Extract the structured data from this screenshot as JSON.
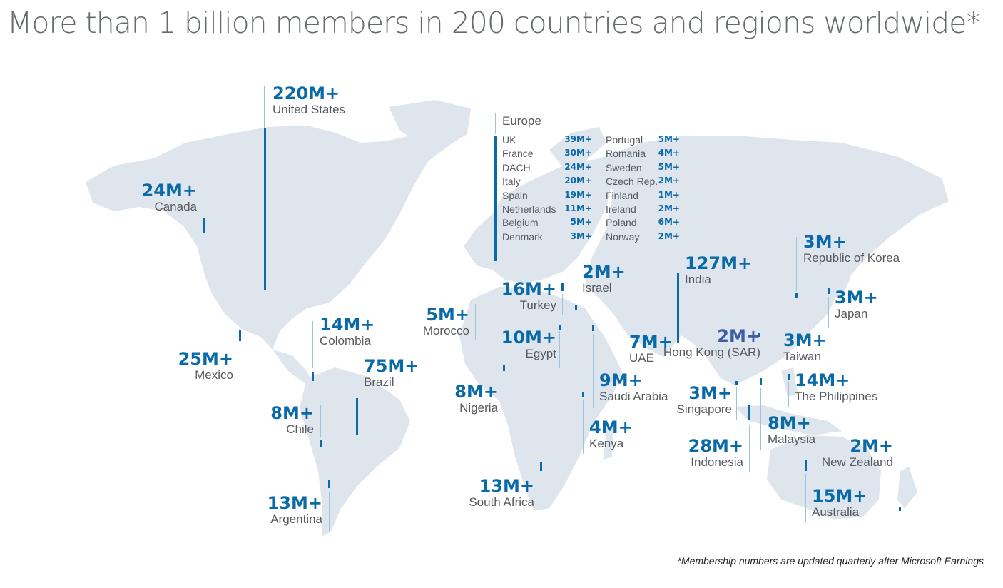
{
  "title": "More than 1 billion members in 200 countries and regions worldwide*",
  "footnote": "*Membership numbers are updated quarterly after Microsoft Earnings",
  "colors": {
    "accent": "#0a6aa8",
    "land": "#dfe5ed",
    "title": "#666b70"
  },
  "callouts": {
    "united_states": {
      "value": "220M+",
      "country": "United States"
    },
    "canada": {
      "value": "24M+",
      "country": "Canada"
    },
    "mexico": {
      "value": "25M+",
      "country": "Mexico"
    },
    "colombia": {
      "value": "14M+",
      "country": "Colombia"
    },
    "brazil": {
      "value": "75M+",
      "country": "Brazil"
    },
    "chile": {
      "value": "8M+",
      "country": "Chile"
    },
    "argentina": {
      "value": "13M+",
      "country": "Argentina"
    },
    "morocco": {
      "value": "5M+",
      "country": "Morocco"
    },
    "turkey": {
      "value": "16M+",
      "country": "Turkey"
    },
    "israel": {
      "value": "2M+",
      "country": "Israel"
    },
    "egypt": {
      "value": "10M+",
      "country": "Egypt"
    },
    "nigeria": {
      "value": "8M+",
      "country": "Nigeria"
    },
    "saudi_arabia": {
      "value": "9M+",
      "country": "Saudi Arabia"
    },
    "uae": {
      "value": "7M+",
      "country": "UAE"
    },
    "kenya": {
      "value": "4M+",
      "country": "Kenya"
    },
    "south_africa": {
      "value": "13M+",
      "country": "South Africa"
    },
    "india": {
      "value": "127M+",
      "country": "India"
    },
    "hong_kong": {
      "value": "2M+",
      "country": "Hong Kong (SAR)"
    },
    "taiwan": {
      "value": "3M+",
      "country": "Taiwan"
    },
    "korea": {
      "value": "3M+",
      "country": "Republic of Korea"
    },
    "japan": {
      "value": "3M+",
      "country": "Japan"
    },
    "philippines": {
      "value": "14M+",
      "country": "The Philippines"
    },
    "singapore": {
      "value": "3M+",
      "country": "Singapore"
    },
    "malaysia": {
      "value": "8M+",
      "country": "Malaysia"
    },
    "indonesia": {
      "value": "28M+",
      "country": "Indonesia"
    },
    "new_zealand": {
      "value": "2M+",
      "country": "New Zealand"
    },
    "australia": {
      "value": "15M+",
      "country": "Australia"
    }
  },
  "europe": {
    "title": "Europe",
    "col1": [
      {
        "country": "UK",
        "value": "39M+"
      },
      {
        "country": "France",
        "value": "30M+"
      },
      {
        "country": "DACH",
        "value": "24M+"
      },
      {
        "country": "Italy",
        "value": "20M+"
      },
      {
        "country": "Spain",
        "value": "19M+"
      },
      {
        "country": "Netherlands",
        "value": "11M+"
      },
      {
        "country": "Belgium",
        "value": "5M+"
      },
      {
        "country": "Denmark",
        "value": "3M+"
      }
    ],
    "col2": [
      {
        "country": "Portugal",
        "value": "5M+"
      },
      {
        "country": "Romania",
        "value": "4M+"
      },
      {
        "country": "Sweden",
        "value": "5M+"
      },
      {
        "country": "Czech Rep.",
        "value": "2M+"
      },
      {
        "country": "Finland",
        "value": "1M+"
      },
      {
        "country": "Ireland",
        "value": "2M+"
      },
      {
        "country": "Poland",
        "value": "6M+"
      },
      {
        "country": "Norway",
        "value": "2M+"
      }
    ]
  }
}
